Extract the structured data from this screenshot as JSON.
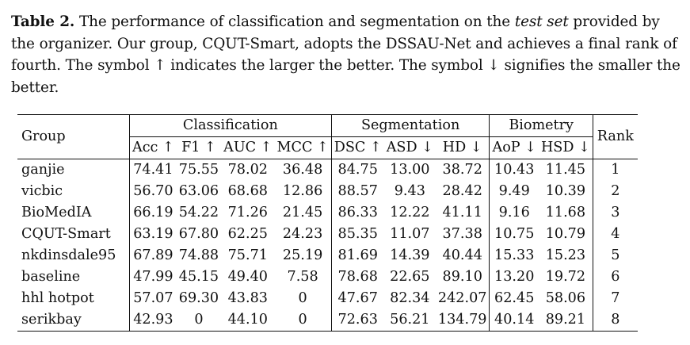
{
  "caption": {
    "label": "Table 2.",
    "text_before_italic": " The performance of classification and segmentation on the ",
    "italic": "test set",
    "text_after_italic": " provided by the organizer. Our group, CQUT-Smart, adopts the DSSAU-Net and achieves a final rank of fourth. The symbol ↑ indicates the larger the better. The symbol ↓ signifies the smaller the better."
  },
  "table": {
    "group_header": "Group",
    "rank_header": "Rank",
    "sections": {
      "classification": "Classification",
      "segmentation": "Segmentation",
      "biometry": "Biometry"
    },
    "columns": [
      "Acc ↑",
      "F1 ↑",
      "AUC ↑",
      "MCC ↑",
      "DSC ↑",
      "ASD ↓",
      "HD ↓",
      "AoP ↓",
      "HSD ↓"
    ],
    "rows": [
      {
        "group": "ganjie",
        "values": [
          "74.41",
          "75.55",
          "78.02",
          "36.48",
          "84.75",
          "13.00",
          "38.72",
          "10.43",
          "11.45"
        ],
        "rank": "1"
      },
      {
        "group": "vicbic",
        "values": [
          "56.70",
          "63.06",
          "68.68",
          "12.86",
          "88.57",
          "9.43",
          "28.42",
          "9.49",
          "10.39"
        ],
        "rank": "2"
      },
      {
        "group": "BioMedIA",
        "values": [
          "66.19",
          "54.22",
          "71.26",
          "21.45",
          "86.33",
          "12.22",
          "41.11",
          "9.16",
          "11.68"
        ],
        "rank": "3"
      },
      {
        "group": "CQUT-Smart",
        "values": [
          "63.19",
          "67.80",
          "62.25",
          "24.23",
          "85.35",
          "11.07",
          "37.38",
          "10.75",
          "10.79"
        ],
        "rank": "4"
      },
      {
        "group": "nkdinsdale95",
        "values": [
          "67.89",
          "74.88",
          "75.71",
          "25.19",
          "81.69",
          "14.39",
          "40.44",
          "15.33",
          "15.23"
        ],
        "rank": "5"
      },
      {
        "group": "baseline",
        "values": [
          "47.99",
          "45.15",
          "49.40",
          "7.58",
          "78.68",
          "22.65",
          "89.10",
          "13.20",
          "19.72"
        ],
        "rank": "6"
      },
      {
        "group": "hhl hotpot",
        "values": [
          "57.07",
          "69.30",
          "43.83",
          "0",
          "47.67",
          "82.34",
          "242.07",
          "62.45",
          "58.06"
        ],
        "rank": "7"
      },
      {
        "group": "serikbay",
        "values": [
          "42.93",
          "0",
          "44.10",
          "0",
          "72.63",
          "56.21",
          "134.79",
          "40.14",
          "89.21"
        ],
        "rank": "8"
      }
    ]
  }
}
